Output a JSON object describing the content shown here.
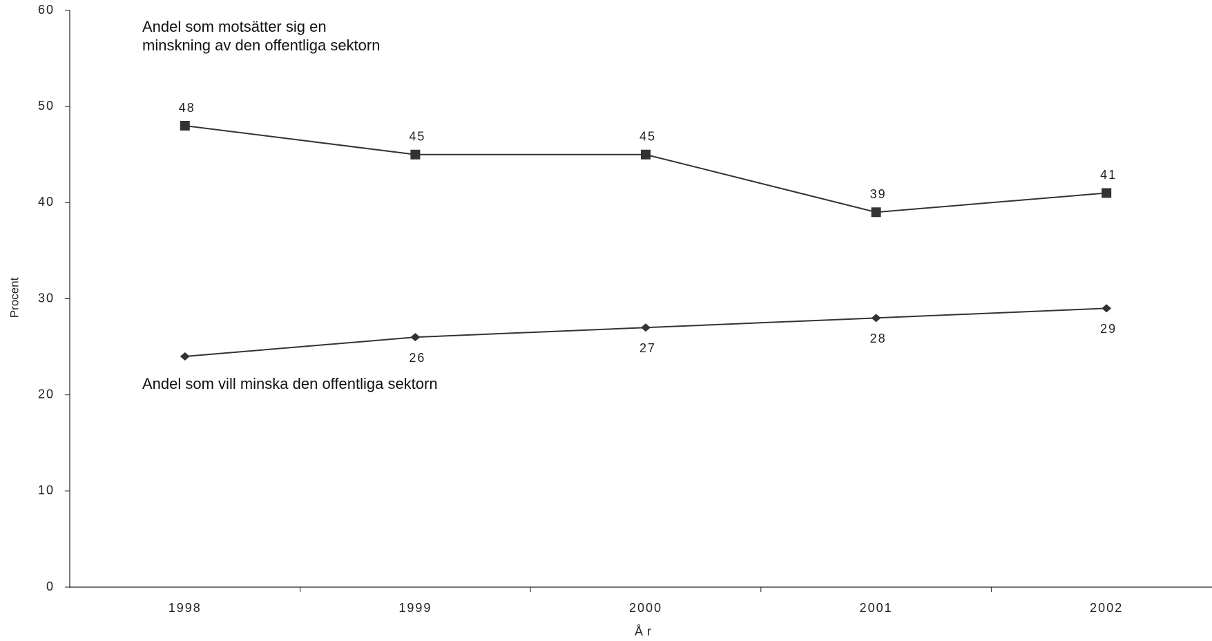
{
  "chart_data": {
    "type": "line",
    "x_label": "År",
    "y_label": "Procent",
    "categories": [
      "1998",
      "1999",
      "2000",
      "2001",
      "2002"
    ],
    "series": [
      {
        "name": "Andel som motsätter sig en\nminskning av den offentliga sektorn",
        "color": "#333333",
        "marker": "square",
        "values": [
          48,
          45,
          45,
          39,
          41
        ]
      },
      {
        "name": "Andel som vill minska den offentliga sektorn",
        "color": "#333333",
        "marker": "diamond",
        "values": [
          24,
          26,
          27,
          28,
          29
        ],
        "value_labels": [
          null,
          "26",
          "27",
          "28",
          "29"
        ]
      }
    ],
    "ylim": [
      0,
      60
    ],
    "yticks": [
      0,
      10,
      20,
      30,
      40,
      50,
      60
    ],
    "grid": false
  }
}
